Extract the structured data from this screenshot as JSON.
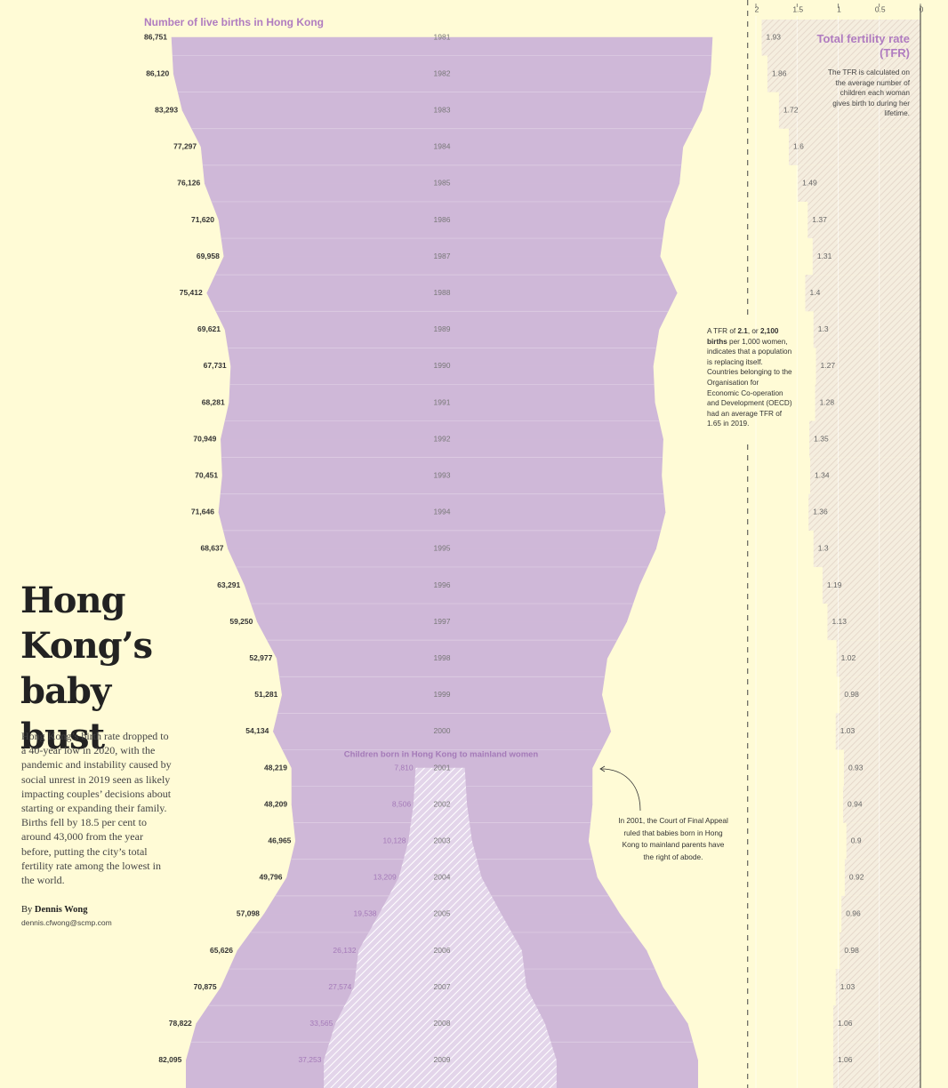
{
  "article": {
    "headline": "Hong Kong’s baby bust",
    "body": "Hong Kong’s birth rate dropped to a 40-year low in 2020, with the pandemic and instability caused by social unrest in 2019 seen as likely impacting couples’ decisions about starting or expanding their family. Births fell by 18.5 per cent to around 43,000 from the year before, putting the city’s total fertility rate among the lowest in the world.",
    "byline": {
      "prefix": "By",
      "name": "Dennis Wong",
      "email": "dennis.cfwong@scmp.com"
    }
  },
  "chart_data": [
    {
      "type": "mirrored-area",
      "title": "Number of live births in Hong Kong",
      "color": "#cfb8d8",
      "categories": [
        "1981",
        "1982",
        "1983",
        "1984",
        "1985",
        "1986",
        "1987",
        "1988",
        "1989",
        "1990",
        "1991",
        "1992",
        "1993",
        "1994",
        "1995",
        "1996",
        "1997",
        "1998",
        "1999",
        "2000",
        "2001",
        "2002",
        "2003",
        "2004",
        "2005",
        "2006",
        "2007",
        "2008",
        "2009"
      ],
      "values": [
        86751,
        86120,
        83293,
        77297,
        76126,
        71620,
        69958,
        75412,
        69621,
        67731,
        68281,
        70949,
        70451,
        71646,
        68637,
        63291,
        59250,
        52977,
        51281,
        54134,
        48219,
        48209,
        46965,
        49796,
        57098,
        65626,
        70875,
        78822,
        82095
      ],
      "value_labels": [
        "86,751",
        "86,120",
        "83,293",
        "77,297",
        "76,126",
        "71,620",
        "69,958",
        "75,412",
        "69,621",
        "67,731",
        "68,281",
        "70,949",
        "70,451",
        "71,646",
        "68,637",
        "63,291",
        "59,250",
        "52,977",
        "51,281",
        "54,134",
        "48,219",
        "48,209",
        "46,965",
        "49,796",
        "57,098",
        "65,626",
        "70,875",
        "78,822",
        "82,095"
      ]
    },
    {
      "type": "mirrored-area",
      "title": "Children born in Hong Kong to mainland women",
      "color": "#e3d5ea",
      "categories": [
        "2001",
        "2002",
        "2003",
        "2004",
        "2005",
        "2006",
        "2007",
        "2008",
        "2009"
      ],
      "values": [
        7810,
        8506,
        10128,
        13209,
        19538,
        26132,
        27574,
        33565,
        37253
      ],
      "value_labels": [
        "7,810",
        "8,506",
        "10,128",
        "13,209",
        "19,538",
        "26,132",
        "27,574",
        "33,565",
        "37,253"
      ],
      "annotation": "In 2001, the Court of Final Appeal ruled that babies born in Hong Kong to mainland parents have the right of abode."
    },
    {
      "type": "step-bar",
      "title": "Total fertility rate (TFR)",
      "color": "#eadfd3",
      "subtitle": "The TFR is calculated on the average number of children each woman gives birth to during her lifetime.",
      "categories": [
        "1981",
        "1982",
        "1983",
        "1984",
        "1985",
        "1986",
        "1987",
        "1988",
        "1989",
        "1990",
        "1991",
        "1992",
        "1993",
        "1994",
        "1995",
        "1996",
        "1997",
        "1998",
        "1999",
        "2000",
        "2001",
        "2002",
        "2003",
        "2004",
        "2005",
        "2006",
        "2007",
        "2008",
        "2009"
      ],
      "values": [
        1.93,
        1.86,
        1.72,
        1.6,
        1.49,
        1.37,
        1.31,
        1.4,
        1.3,
        1.27,
        1.28,
        1.35,
        1.34,
        1.36,
        1.3,
        1.19,
        1.13,
        1.02,
        0.98,
        1.03,
        0.93,
        0.94,
        0.9,
        0.92,
        0.96,
        0.98,
        1.03,
        1.06,
        1.06
      ],
      "xlim": [
        0,
        2.1
      ],
      "xticks": [
        2,
        1.5,
        1,
        0.5,
        0
      ],
      "reversed": true,
      "grid": true,
      "reference_line": 2.1,
      "note": {
        "parts": [
          "A TFR of ",
          "2.1",
          ", or ",
          "2,100 births",
          " per 1,000 women, indicates that a population is replacing itself.  Countries belonging to the Organisation for Economic Co-operation and Development (OECD) had an average TFR of 1.65 in 2019."
        ],
        "bold": [
          1,
          3
        ]
      }
    }
  ]
}
